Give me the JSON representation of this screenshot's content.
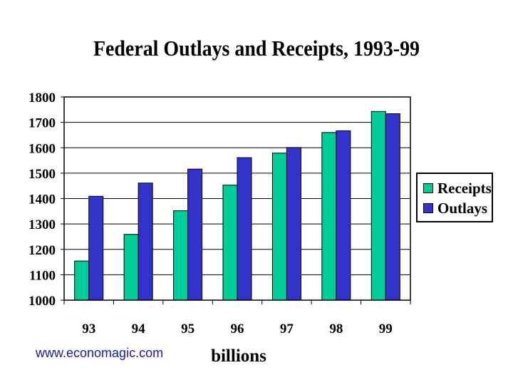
{
  "chart_data": {
    "type": "bar",
    "title": "Federal Outlays and Receipts, 1993-99",
    "xlabel": "billions",
    "ylabel": "",
    "categories": [
      "93",
      "94",
      "95",
      "96",
      "97",
      "98",
      "99"
    ],
    "series": [
      {
        "name": "Receipts",
        "color": "#00cc99",
        "values": [
          1154,
          1259,
          1352,
          1453,
          1579,
          1660,
          1743
        ]
      },
      {
        "name": "Outlays",
        "color": "#3333cc",
        "values": [
          1409,
          1461,
          1516,
          1561,
          1601,
          1667,
          1734
        ]
      }
    ],
    "ylim": [
      1000,
      1800
    ],
    "yticks": [
      "1000",
      "1100",
      "1200",
      "1300",
      "1400",
      "1500",
      "1600",
      "1700",
      "1800"
    ],
    "grid": true,
    "legend_position": "right"
  },
  "watermark": "www.economagic.com"
}
